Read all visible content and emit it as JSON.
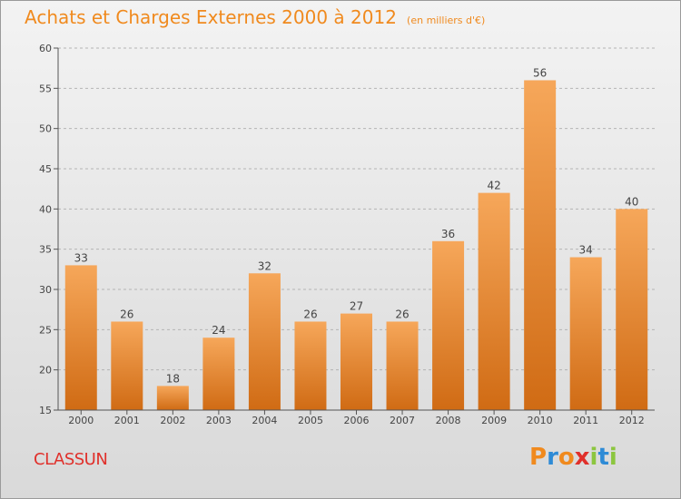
{
  "header": {
    "title": "Achats et Charges Externes 2000 à 2012",
    "subtitle": "(en milliers d'€)"
  },
  "footer": {
    "commune": "CLASSUN",
    "brand": "Proxiti"
  },
  "colors": {
    "title": "#f08a1e",
    "bar_light": "#f6a75a",
    "bar_dark": "#d06b14",
    "commune": "#e0302b",
    "brand_letters": [
      "#f08a1e",
      "#2e8bd6",
      "#f08a1e",
      "#e0302b",
      "#8cc63f",
      "#2e8bd6",
      "#8cc63f"
    ]
  },
  "chart_data": {
    "type": "bar",
    "title": "Achats et Charges Externes 2000 à 2012",
    "subtitle": "(en milliers d'€)",
    "categories": [
      "2000",
      "2001",
      "2002",
      "2003",
      "2004",
      "2005",
      "2006",
      "2007",
      "2008",
      "2009",
      "2010",
      "2011",
      "2012"
    ],
    "values": [
      33,
      26,
      18,
      24,
      32,
      26,
      27,
      26,
      36,
      42,
      56,
      34,
      40
    ],
    "data_labels": [
      "33",
      "26",
      "18",
      "24",
      "32",
      "26",
      "27",
      "26",
      "36",
      "42",
      "56",
      "34",
      "40"
    ],
    "ylim": [
      15,
      60
    ],
    "yticks": [
      15,
      20,
      25,
      30,
      35,
      40,
      45,
      50,
      55,
      60
    ],
    "ytick_labels": [
      "15",
      "20",
      "25",
      "30",
      "35",
      "40",
      "45",
      "50",
      "55",
      "60"
    ],
    "grid": "horizontal-dashed",
    "legend": "none"
  }
}
